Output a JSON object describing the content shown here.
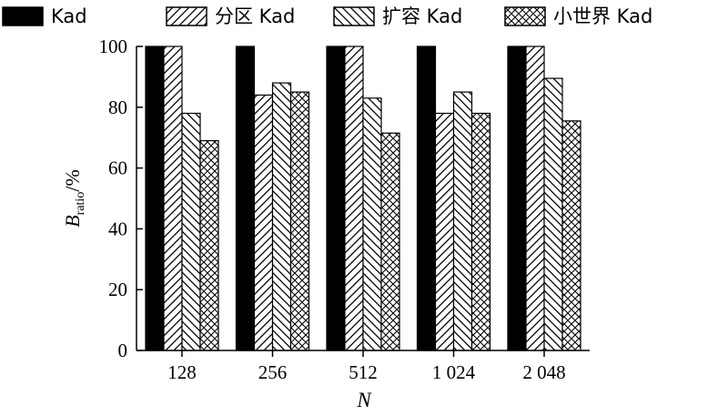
{
  "chart_data": {
    "type": "bar",
    "xlabel": "N",
    "ylabel": {
      "base": "B",
      "subscript": "ratio",
      "suffix": "/%"
    },
    "ylim": [
      0,
      100
    ],
    "yticks": [
      "0",
      "20",
      "40",
      "60",
      "80",
      "100"
    ],
    "categories": [
      "128",
      "256",
      "512",
      "1 024",
      "2 048"
    ],
    "grid": false,
    "legend_placement": "top",
    "series": [
      {
        "name": "Kad",
        "pattern": "solid",
        "color": "#000000",
        "values": [
          100,
          100,
          100,
          100,
          100
        ]
      },
      {
        "name": "分区 Kad",
        "pattern": "diag-right",
        "color": "#000000",
        "values": [
          100,
          84,
          100,
          78,
          100
        ]
      },
      {
        "name": "扩容 Kad",
        "pattern": "diag-left",
        "color": "#000000",
        "values": [
          78,
          88,
          83,
          85,
          89.5
        ]
      },
      {
        "name": "小世界 Kad",
        "pattern": "crosshatch",
        "color": "#000000",
        "values": [
          69,
          85,
          71.5,
          78,
          75.5
        ]
      }
    ]
  }
}
